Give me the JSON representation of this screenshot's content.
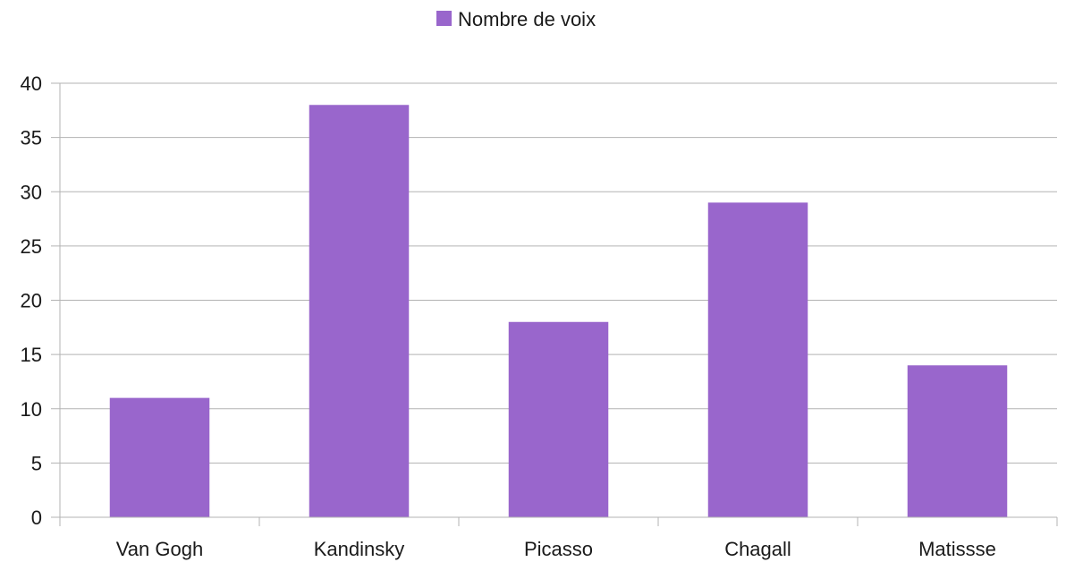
{
  "chart_data": {
    "type": "bar",
    "categories": [
      "Van Gogh",
      "Kandinsky",
      "Picasso",
      "Chagall",
      "Matissse"
    ],
    "series": [
      {
        "name": "Nombre de voix",
        "values": [
          11,
          38,
          18,
          29,
          14
        ],
        "color": "#9966cc"
      }
    ],
    "title": "",
    "xlabel": "",
    "ylabel": "",
    "ylim": [
      0,
      40
    ],
    "yticks": [
      0,
      5,
      10,
      15,
      20,
      25,
      30,
      35,
      40
    ],
    "grid": true,
    "legend": {
      "placement": "top-center",
      "entries": [
        "Nombre de voix"
      ]
    }
  }
}
